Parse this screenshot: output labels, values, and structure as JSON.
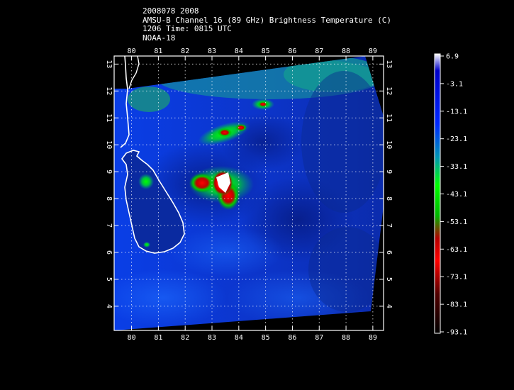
{
  "header": {
    "line1": "2008078 2008",
    "line2": "AMSU-B Channel 16 (89 GHz) Brightness Temperature (C)",
    "line3": "1206 Time: 0815 UTC",
    "line4": "NOAA-18"
  },
  "map": {
    "lon_ticks": [
      "80",
      "81",
      "82",
      "83",
      "84",
      "85",
      "86",
      "87",
      "88",
      "89"
    ],
    "lat_ticks": [
      "13",
      "12",
      "11",
      "10",
      "9",
      "8",
      "7",
      "6",
      "5",
      "4"
    ],
    "lon_range": [
      79.35,
      89.4
    ],
    "lat_range": [
      3.1,
      13.3
    ]
  },
  "colorbar": {
    "labels": [
      "6.9",
      "-3.1",
      "-13.1",
      "-23.1",
      "-33.1",
      "-43.1",
      "-53.1",
      "-63.1",
      "-73.1",
      "-83.1",
      "-93.1"
    ],
    "colors": [
      "#ffffff",
      "#0000c8",
      "#0028ff",
      "#0096b4",
      "#00ff00",
      "#00b400",
      "#b40000",
      "#ff0000",
      "#500000",
      "#000000"
    ]
  }
}
